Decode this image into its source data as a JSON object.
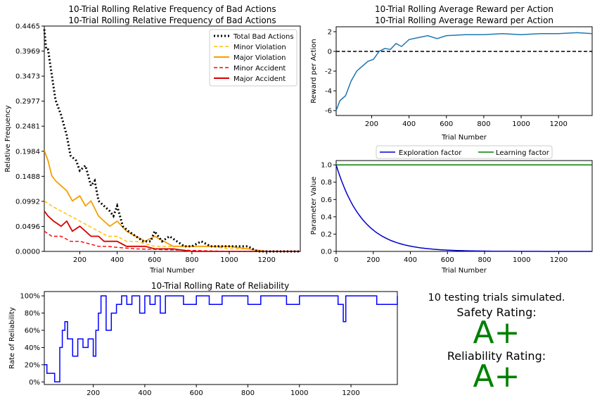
{
  "colors": {
    "total_bad": "#000000",
    "minor_violation": "#ffc000",
    "major_violation": "#f5a000",
    "minor_accident": "#ff0000",
    "major_accident": "#d80000",
    "reward": "#1f77b4",
    "exploration": "#0000cc",
    "learning": "#008000",
    "reliability": "#0000ff",
    "rating": "#008000"
  },
  "chart_data": [
    {
      "id": "bad_actions",
      "type": "line",
      "title": "10-Trial Rolling Relative Frequency of Bad Actions",
      "title_ghost": "10-Trial Rolling Relative Frequency of Bad Actions",
      "xlabel": "Trial Number",
      "ylabel": "Relative Frequency",
      "xlim": [
        10,
        1380
      ],
      "ylim": [
        0,
        0.4465
      ],
      "xticks": [
        "200",
        "400",
        "600",
        "800",
        "1000",
        "1200"
      ],
      "yticks": [
        "0.0000",
        "0.0496",
        "0.0992",
        "0.1488",
        "0.1984",
        "0.2481",
        "0.2977",
        "0.3473",
        "0.3969",
        "0.4465"
      ],
      "legend": "top-right",
      "series": [
        {
          "name": "Total Bad Actions",
          "x": [
            10,
            20,
            30,
            50,
            70,
            100,
            130,
            150,
            180,
            200,
            230,
            260,
            280,
            300,
            330,
            360,
            380,
            400,
            430,
            460,
            500,
            540,
            580,
            600,
            640,
            680,
            720,
            760,
            800,
            850,
            900,
            950,
            1000,
            1050,
            1100,
            1150,
            1200,
            1300,
            1380
          ],
          "y": [
            0.44,
            0.4,
            0.4,
            0.35,
            0.3,
            0.27,
            0.23,
            0.19,
            0.18,
            0.16,
            0.17,
            0.13,
            0.14,
            0.1,
            0.09,
            0.08,
            0.07,
            0.09,
            0.05,
            0.04,
            0.03,
            0.02,
            0.02,
            0.04,
            0.02,
            0.03,
            0.02,
            0.01,
            0.01,
            0.02,
            0.01,
            0.01,
            0.01,
            0.01,
            0.01,
            0.0,
            0.0,
            0.0,
            0.0
          ]
        },
        {
          "name": "Minor Violation",
          "x": [
            10,
            50,
            100,
            150,
            200,
            250,
            300,
            350,
            400,
            450,
            500,
            600,
            700,
            800,
            900,
            1000,
            1100,
            1200,
            1380
          ],
          "y": [
            0.1,
            0.09,
            0.08,
            0.07,
            0.06,
            0.05,
            0.04,
            0.03,
            0.03,
            0.02,
            0.02,
            0.01,
            0.01,
            0.01,
            0.01,
            0.005,
            0.005,
            0.0,
            0.0
          ]
        },
        {
          "name": "Major Violation",
          "x": [
            10,
            30,
            50,
            70,
            100,
            130,
            160,
            200,
            230,
            260,
            300,
            330,
            360,
            400,
            450,
            500,
            550,
            600,
            650,
            700,
            800,
            900,
            1000,
            1100,
            1200,
            1380
          ],
          "y": [
            0.2,
            0.18,
            0.15,
            0.14,
            0.13,
            0.12,
            0.1,
            0.11,
            0.09,
            0.1,
            0.07,
            0.06,
            0.05,
            0.06,
            0.04,
            0.03,
            0.02,
            0.03,
            0.02,
            0.01,
            0.01,
            0.01,
            0.01,
            0.005,
            0.0,
            0.0
          ]
        },
        {
          "name": "Minor Accident",
          "x": [
            10,
            50,
            100,
            150,
            200,
            250,
            300,
            350,
            400,
            500,
            600,
            700,
            800,
            1000,
            1380
          ],
          "y": [
            0.04,
            0.03,
            0.03,
            0.02,
            0.02,
            0.015,
            0.01,
            0.01,
            0.008,
            0.005,
            0.004,
            0.003,
            0.002,
            0.0,
            0.0
          ]
        },
        {
          "name": "Major Accident",
          "x": [
            10,
            30,
            60,
            100,
            130,
            160,
            200,
            230,
            260,
            300,
            330,
            360,
            400,
            450,
            500,
            550,
            600,
            700,
            800,
            1000,
            1380
          ],
          "y": [
            0.08,
            0.07,
            0.06,
            0.05,
            0.06,
            0.04,
            0.05,
            0.04,
            0.03,
            0.03,
            0.02,
            0.02,
            0.02,
            0.01,
            0.01,
            0.01,
            0.005,
            0.005,
            0.0,
            0.0,
            0.0
          ]
        }
      ]
    },
    {
      "id": "avg_reward",
      "type": "line",
      "title": "10-Trial Rolling Average Reward per Action",
      "title_ghost": "10-Trial Rolling Average Reward per Action",
      "xlabel": "Trial Number",
      "ylabel": "Reward per Action",
      "xlim": [
        10,
        1380
      ],
      "ylim": [
        -6.5,
        2.5
      ],
      "xticks": [
        "200",
        "400",
        "600",
        "800",
        "1000",
        "1200"
      ],
      "yticks": [
        "-6",
        "-4",
        "-2",
        "0",
        "2"
      ],
      "reference_line_y": 0,
      "series": [
        {
          "name": "",
          "x": [
            10,
            30,
            60,
            90,
            120,
            150,
            180,
            210,
            240,
            270,
            300,
            330,
            360,
            400,
            450,
            500,
            550,
            600,
            700,
            800,
            900,
            1000,
            1100,
            1200,
            1300,
            1380
          ],
          "y": [
            -6.0,
            -5.0,
            -4.5,
            -3.0,
            -2.0,
            -1.5,
            -1.0,
            -0.8,
            0.0,
            0.3,
            0.2,
            0.8,
            0.5,
            1.2,
            1.4,
            1.6,
            1.3,
            1.6,
            1.7,
            1.7,
            1.8,
            1.7,
            1.8,
            1.8,
            1.9,
            1.8
          ]
        }
      ]
    },
    {
      "id": "parameters",
      "type": "line",
      "title": "",
      "xlabel": "Trial Number",
      "ylabel": "Parameter Value",
      "xlim": [
        0,
        1380
      ],
      "ylim": [
        0,
        1.05
      ],
      "xticks": [
        "0",
        "200",
        "400",
        "600",
        "800",
        "1000",
        "1200"
      ],
      "yticks": [
        "0.0",
        "0.2",
        "0.4",
        "0.6",
        "0.8",
        "1.0"
      ],
      "legend": "top-outside",
      "series": [
        {
          "name": "Exploration factor",
          "decay_rate": 0.007
        },
        {
          "name": "Learning factor",
          "constant": 1.0
        }
      ]
    },
    {
      "id": "reliability",
      "type": "line",
      "title": "10-Trial Rolling Rate of Reliability",
      "xlabel": "",
      "ylabel": "Rate of Reliability",
      "xlim": [
        10,
        1380
      ],
      "ylim": [
        -0.03,
        1.05
      ],
      "xticks": [
        "200",
        "400",
        "600",
        "800",
        "1000",
        "1200"
      ],
      "yticks": [
        "0%",
        "20%",
        "40%",
        "60%",
        "80%",
        "100%"
      ],
      "series": [
        {
          "name": "",
          "x": [
            10,
            20,
            30,
            50,
            70,
            80,
            90,
            100,
            120,
            140,
            160,
            180,
            200,
            210,
            220,
            230,
            250,
            270,
            290,
            310,
            330,
            350,
            380,
            400,
            420,
            440,
            460,
            480,
            500,
            550,
            600,
            650,
            700,
            750,
            800,
            850,
            900,
            950,
            1000,
            1050,
            1100,
            1150,
            1170,
            1180,
            1200,
            1250,
            1300,
            1380
          ],
          "y": [
            0.2,
            0.1,
            0.1,
            0.0,
            0.4,
            0.6,
            0.7,
            0.5,
            0.3,
            0.5,
            0.4,
            0.5,
            0.3,
            0.6,
            0.8,
            1.0,
            0.6,
            0.8,
            0.9,
            1.0,
            0.9,
            1.0,
            0.8,
            1.0,
            0.9,
            1.0,
            0.8,
            1.0,
            1.0,
            0.9,
            1.0,
            0.9,
            1.0,
            1.0,
            0.9,
            1.0,
            1.0,
            0.9,
            1.0,
            1.0,
            1.0,
            0.9,
            0.7,
            1.0,
            1.0,
            1.0,
            0.9,
            1.0
          ]
        }
      ]
    }
  ],
  "summary": {
    "trials_text": "10 testing trials simulated.",
    "safety_label": "Safety Rating:",
    "safety_grade": "A+",
    "reliability_label": "Reliability Rating:",
    "reliability_grade": "A+"
  }
}
